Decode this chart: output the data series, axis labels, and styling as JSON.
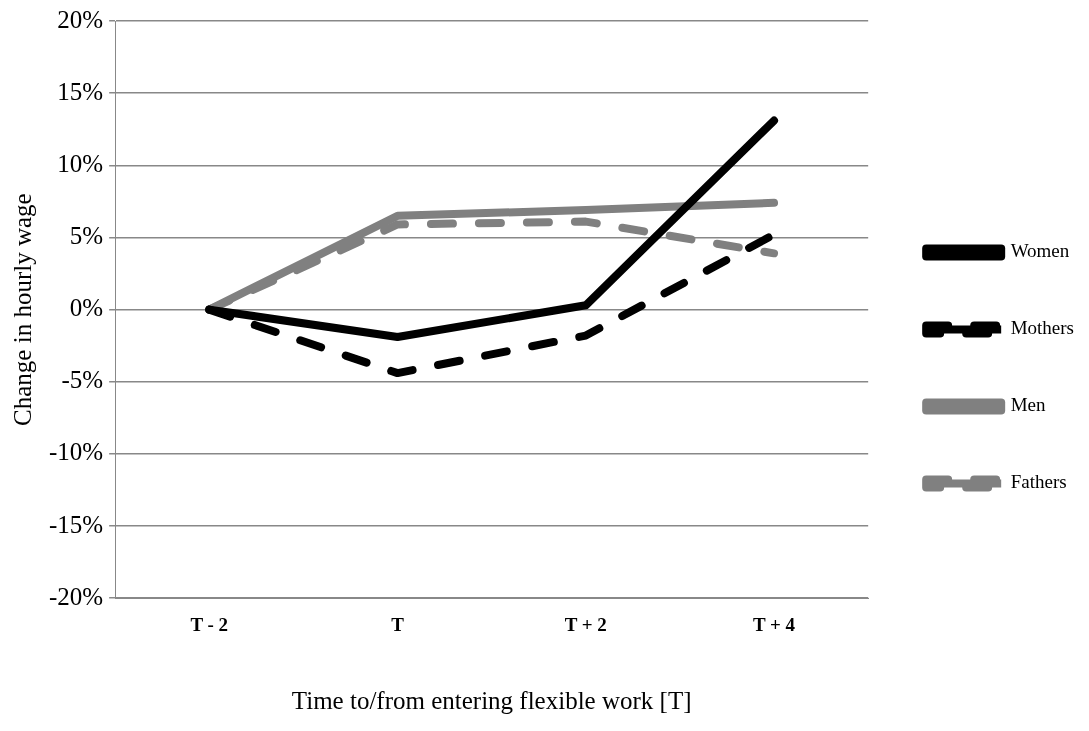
{
  "chart_data": {
    "type": "line",
    "xlabel": "Time to/from entering flexible work [T]",
    "ylabel": "Change in hourly wage",
    "categories": [
      "T - 2",
      "T",
      "T + 2",
      "T + 4"
    ],
    "series": [
      {
        "name": "Women",
        "color": "#000000",
        "line_style": "solid",
        "values": [
          0,
          -1.9,
          0.3,
          13.1
        ]
      },
      {
        "name": "Mothers",
        "color": "#000000",
        "line_style": "dashed",
        "values": [
          0,
          -4.4,
          -1.8,
          5.2
        ]
      },
      {
        "name": "Men",
        "color": "#808080",
        "line_style": "solid",
        "values": [
          0,
          6.5,
          6.9,
          7.4
        ]
      },
      {
        "name": "Fathers",
        "color": "#808080",
        "line_style": "dashed",
        "values": [
          0,
          5.9,
          6.1,
          3.9
        ]
      }
    ],
    "ylim": [
      -20,
      20
    ],
    "yticks": [
      {
        "value": -20,
        "label": "-20%"
      },
      {
        "value": -15,
        "label": "-15%"
      },
      {
        "value": -10,
        "label": "-10%"
      },
      {
        "value": -5,
        "label": "-5%"
      },
      {
        "value": 0,
        "label": "0%"
      },
      {
        "value": 5,
        "label": "5%"
      },
      {
        "value": 10,
        "label": "10%"
      },
      {
        "value": 15,
        "label": "15%"
      },
      {
        "value": 20,
        "label": "20%"
      }
    ],
    "grid": "y",
    "legend": "right",
    "marker": "none"
  }
}
